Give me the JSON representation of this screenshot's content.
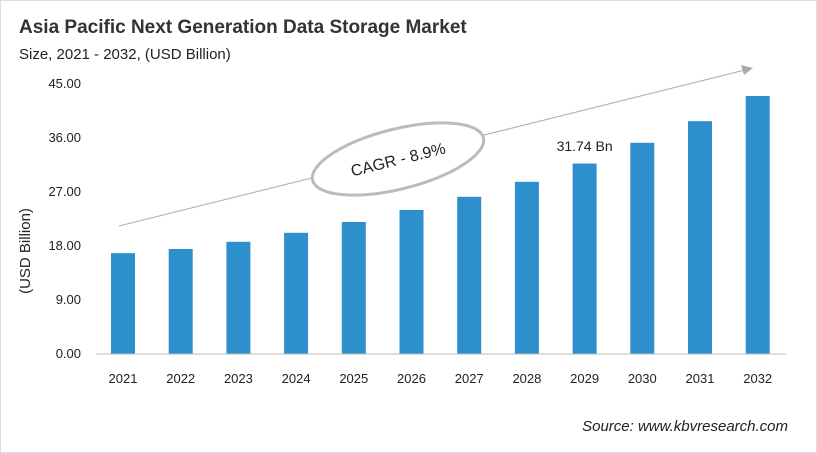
{
  "title": "Asia Pacific Next Generation Data Storage Market",
  "subtitle": "Size, 2021 - 2032, (USD Billion)",
  "source": "Source: www.kbvresearch.com",
  "chart_data": {
    "type": "bar",
    "categories": [
      "2021",
      "2022",
      "2023",
      "2024",
      "2025",
      "2026",
      "2027",
      "2028",
      "2029",
      "2030",
      "2031",
      "2032"
    ],
    "values": [
      16.8,
      17.5,
      18.7,
      20.2,
      22.0,
      24.0,
      26.2,
      28.7,
      31.74,
      35.2,
      38.8,
      43.0
    ],
    "ylabel": "(USD Billion)",
    "ylim": [
      0,
      45
    ],
    "yticks": [
      "0.00",
      "9.00",
      "18.00",
      "27.00",
      "36.00",
      "45.00"
    ],
    "grid": false,
    "bar_color": "#2e8fcd",
    "annotations": {
      "cagr": "CAGR - 8.9%",
      "value_label": "31.74 Bn",
      "value_label_category": "2029"
    }
  }
}
